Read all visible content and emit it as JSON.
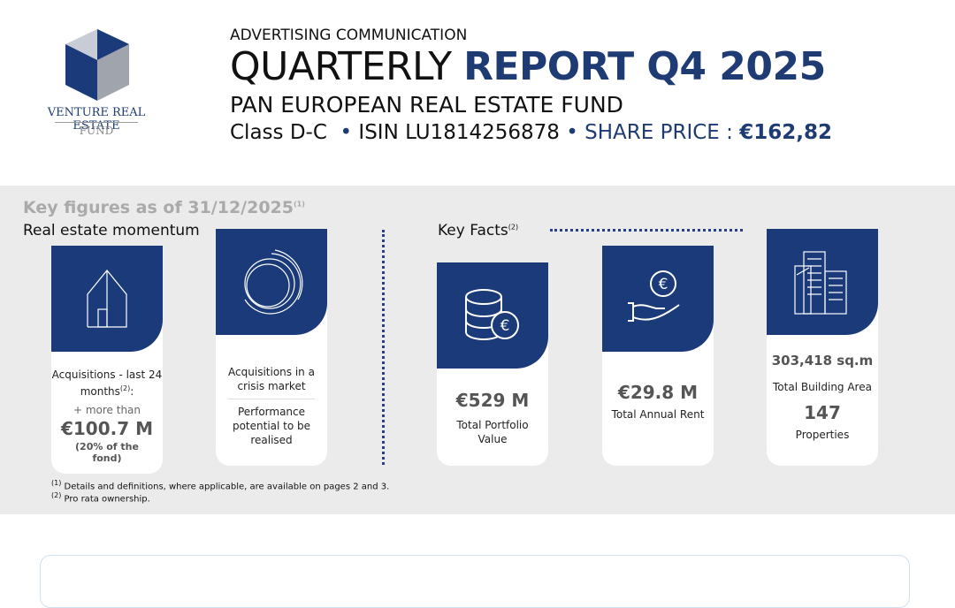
{
  "logo": {
    "name": "VENTURE REAL ESTATE",
    "sub": "FUND"
  },
  "header": {
    "kicker": "ADVERTISING COMMUNICATION",
    "title_light": "QUARTERLY",
    "title_bold": "REPORT Q4 2025",
    "fund": "PAN EUROPEAN REAL ESTATE FUND",
    "class": "Class D-C",
    "separators": [
      "•",
      "•"
    ],
    "isin": "ISIN LU1814256878",
    "price_label": "SHARE PRICE :",
    "price": "€162,82"
  },
  "key_figures": {
    "title": "Key figures as of 31/12/2025",
    "title_note": "(1)",
    "momentum": {
      "title": "Real estate momentum",
      "cards": [
        {
          "label": "Acquisitions - last 24 months",
          "label_note": "(2)",
          "label_suffix": ":",
          "prefix": "+ more than",
          "value": "€100.7 M",
          "detail": "(20% of the fond)"
        },
        {
          "lines": [
            "Acquisitions in a crisis market",
            "Performance potential to be realised"
          ]
        }
      ]
    },
    "facts": {
      "title": "Key Facts",
      "title_note": "(2)",
      "cards": [
        {
          "value": "€529 M",
          "label": "Total Portfolio Value"
        },
        {
          "value": "€29.8 M",
          "label": "Total Annual Rent"
        },
        {
          "value": "303,418 sq.m",
          "label": "Total Building Area",
          "value2": "147",
          "label2": "Properties"
        }
      ]
    }
  },
  "footnotes": [
    {
      "marker": "(1)",
      "text": "Details and definitions, where applicable, are available on pages 2 and 3."
    },
    {
      "marker": "(2)",
      "text": "Pro rata ownership."
    }
  ]
}
